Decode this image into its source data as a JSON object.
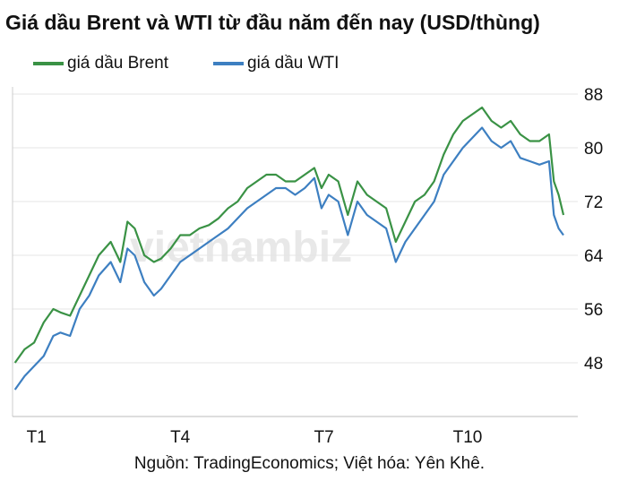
{
  "title": "Giá dầu Brent và WTI từ đầu năm đến nay (USD/thùng)",
  "source": "Nguồn: TradingEconomics; Việt hóa: Yên Khê.",
  "watermark": "vietnambiz",
  "chart_data": {
    "type": "line",
    "title": "Giá dầu Brent và WTI từ đầu năm đến nay (USD/thùng)",
    "xlabel": "",
    "ylabel": "",
    "ylim": [
      40,
      88
    ],
    "yticks": [
      48,
      56,
      64,
      72,
      80,
      88
    ],
    "xticks": [
      {
        "label": "T1",
        "x": 1
      },
      {
        "label": "T4",
        "x": 4
      },
      {
        "label": "T7",
        "x": 7
      },
      {
        "label": "T10",
        "x": 10
      }
    ],
    "xlim": [
      0.5,
      12.3
    ],
    "grid": "horizontal",
    "legend": "top-left",
    "series": [
      {
        "name": "giá dầu Brent",
        "color": "#3a9245",
        "points": [
          [
            0.55,
            48
          ],
          [
            0.75,
            50
          ],
          [
            0.95,
            51
          ],
          [
            1.15,
            54
          ],
          [
            1.35,
            56
          ],
          [
            1.5,
            55.5
          ],
          [
            1.7,
            55
          ],
          [
            1.9,
            58
          ],
          [
            2.1,
            61
          ],
          [
            2.3,
            64
          ],
          [
            2.55,
            66
          ],
          [
            2.75,
            63
          ],
          [
            2.9,
            69
          ],
          [
            3.05,
            68
          ],
          [
            3.25,
            64
          ],
          [
            3.45,
            63
          ],
          [
            3.6,
            63.5
          ],
          [
            3.8,
            65
          ],
          [
            4.0,
            67
          ],
          [
            4.2,
            67
          ],
          [
            4.4,
            68
          ],
          [
            4.6,
            68.5
          ],
          [
            4.8,
            69.5
          ],
          [
            5.0,
            71
          ],
          [
            5.2,
            72
          ],
          [
            5.4,
            74
          ],
          [
            5.6,
            75
          ],
          [
            5.8,
            76
          ],
          [
            6.0,
            76
          ],
          [
            6.2,
            75
          ],
          [
            6.4,
            75
          ],
          [
            6.6,
            76
          ],
          [
            6.8,
            77
          ],
          [
            6.95,
            74
          ],
          [
            7.1,
            76
          ],
          [
            7.3,
            75
          ],
          [
            7.5,
            70
          ],
          [
            7.7,
            75
          ],
          [
            7.9,
            73
          ],
          [
            8.1,
            72
          ],
          [
            8.3,
            71
          ],
          [
            8.5,
            66
          ],
          [
            8.7,
            69
          ],
          [
            8.9,
            72
          ],
          [
            9.1,
            73
          ],
          [
            9.3,
            75
          ],
          [
            9.5,
            79
          ],
          [
            9.7,
            82
          ],
          [
            9.9,
            84
          ],
          [
            10.1,
            85
          ],
          [
            10.3,
            86
          ],
          [
            10.5,
            84
          ],
          [
            10.7,
            83
          ],
          [
            10.9,
            84
          ],
          [
            11.1,
            82
          ],
          [
            11.3,
            81
          ],
          [
            11.5,
            81
          ],
          [
            11.7,
            82
          ],
          [
            11.8,
            75
          ],
          [
            11.9,
            73
          ],
          [
            12.0,
            70
          ]
        ]
      },
      {
        "name": "giá dầu WTI",
        "color": "#3d7fc1",
        "points": [
          [
            0.55,
            44
          ],
          [
            0.75,
            46
          ],
          [
            0.95,
            47.5
          ],
          [
            1.15,
            49
          ],
          [
            1.35,
            52
          ],
          [
            1.5,
            52.5
          ],
          [
            1.7,
            52
          ],
          [
            1.9,
            56
          ],
          [
            2.1,
            58
          ],
          [
            2.3,
            61
          ],
          [
            2.55,
            63
          ],
          [
            2.75,
            60
          ],
          [
            2.9,
            65
          ],
          [
            3.05,
            64
          ],
          [
            3.25,
            60
          ],
          [
            3.45,
            58
          ],
          [
            3.6,
            59
          ],
          [
            3.8,
            61
          ],
          [
            4.0,
            63
          ],
          [
            4.2,
            64
          ],
          [
            4.4,
            65
          ],
          [
            4.6,
            66
          ],
          [
            4.8,
            67
          ],
          [
            5.0,
            68
          ],
          [
            5.2,
            69.5
          ],
          [
            5.4,
            71
          ],
          [
            5.6,
            72
          ],
          [
            5.8,
            73
          ],
          [
            6.0,
            74
          ],
          [
            6.2,
            74
          ],
          [
            6.4,
            73
          ],
          [
            6.6,
            74
          ],
          [
            6.8,
            75.5
          ],
          [
            6.95,
            71
          ],
          [
            7.1,
            73
          ],
          [
            7.3,
            72
          ],
          [
            7.5,
            67
          ],
          [
            7.7,
            72
          ],
          [
            7.9,
            70
          ],
          [
            8.1,
            69
          ],
          [
            8.3,
            68
          ],
          [
            8.5,
            63
          ],
          [
            8.7,
            66
          ],
          [
            8.9,
            68
          ],
          [
            9.1,
            70
          ],
          [
            9.3,
            72
          ],
          [
            9.5,
            76
          ],
          [
            9.7,
            78
          ],
          [
            9.9,
            80
          ],
          [
            10.1,
            81.5
          ],
          [
            10.3,
            83
          ],
          [
            10.5,
            81
          ],
          [
            10.7,
            80
          ],
          [
            10.9,
            81
          ],
          [
            11.1,
            78.5
          ],
          [
            11.3,
            78
          ],
          [
            11.5,
            77.5
          ],
          [
            11.7,
            78
          ],
          [
            11.8,
            70
          ],
          [
            11.9,
            68
          ],
          [
            12.0,
            67
          ]
        ]
      }
    ]
  }
}
